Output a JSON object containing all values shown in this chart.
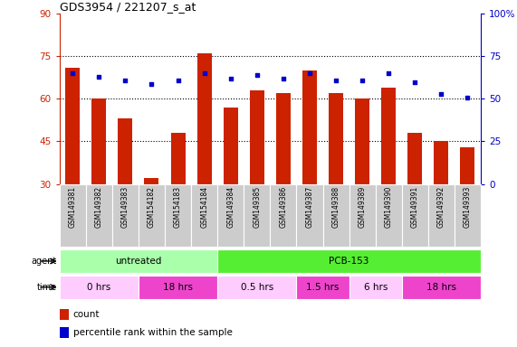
{
  "title": "GDS3954 / 221207_s_at",
  "samples": [
    "GSM149381",
    "GSM149382",
    "GSM149383",
    "GSM154182",
    "GSM154183",
    "GSM154184",
    "GSM149384",
    "GSM149385",
    "GSM149386",
    "GSM149387",
    "GSM149388",
    "GSM149389",
    "GSM149390",
    "GSM149391",
    "GSM149392",
    "GSM149393"
  ],
  "bar_values": [
    71,
    60,
    53,
    32,
    48,
    76,
    57,
    63,
    62,
    70,
    62,
    60,
    64,
    48,
    45,
    43
  ],
  "dot_values": [
    65,
    63,
    61,
    59,
    61,
    65,
    62,
    64,
    62,
    65,
    61,
    61,
    65,
    60,
    53,
    51
  ],
  "ylim_left": [
    30,
    90
  ],
  "ylim_right": [
    0,
    100
  ],
  "yticks_left": [
    30,
    45,
    60,
    75,
    90
  ],
  "yticks_right": [
    0,
    25,
    50,
    75,
    100
  ],
  "ytick_labels_right": [
    "0",
    "25",
    "50",
    "75",
    "100%"
  ],
  "bar_color": "#cc2200",
  "dot_color": "#0000cc",
  "bar_bottom": 30,
  "agent_groups": [
    {
      "label": "untreated",
      "start": 0,
      "end": 6,
      "color": "#aaffaa"
    },
    {
      "label": "PCB-153",
      "start": 6,
      "end": 16,
      "color": "#55ee33"
    }
  ],
  "time_groups": [
    {
      "label": "0 hrs",
      "start": 0,
      "end": 3,
      "color": "#ffccff"
    },
    {
      "label": "18 hrs",
      "start": 3,
      "end": 6,
      "color": "#ee44cc"
    },
    {
      "label": "0.5 hrs",
      "start": 6,
      "end": 9,
      "color": "#ffccff"
    },
    {
      "label": "1.5 hrs",
      "start": 9,
      "end": 11,
      "color": "#ee44cc"
    },
    {
      "label": "6 hrs",
      "start": 11,
      "end": 13,
      "color": "#ffccff"
    },
    {
      "label": "18 hrs",
      "start": 13,
      "end": 16,
      "color": "#ee44cc"
    }
  ],
  "hlines": [
    45,
    60,
    75
  ],
  "left_axis_color": "#cc2200",
  "right_axis_color": "#0000cc",
  "sample_bg": "#cccccc",
  "sample_border": "#ffffff"
}
